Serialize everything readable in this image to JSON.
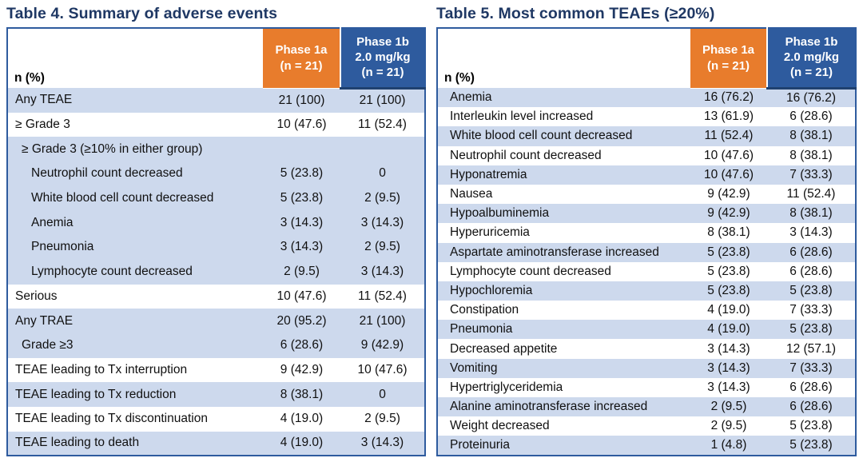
{
  "colors": {
    "title_navy": "#1F3864",
    "header_orange": "#E87C2C",
    "header_blue": "#2E5B9E",
    "row_stripe_blue": "#CDD9ED",
    "table_border_blue": "#2E5B9E"
  },
  "tables": [
    {
      "title": "Table 4. Summary of adverse events",
      "n_label": "n (%)",
      "columns": [
        {
          "label": "Phase 1a\n(n = 21)"
        },
        {
          "label": "Phase 1b\n2.0 mg/kg\n(n = 21)"
        }
      ],
      "rows": [
        {
          "label": "Any TEAE",
          "a": "21 (100)",
          "b": "21 (100)",
          "shade": "blue",
          "indent": 0
        },
        {
          "label": "≥ Grade 3",
          "a": "10 (47.6)",
          "b": "11 (52.4)",
          "shade": "white",
          "indent": 0
        },
        {
          "label": "≥ Grade 3 (≥10% in either group)",
          "a": "",
          "b": "",
          "shade": "blue",
          "indent": 1
        },
        {
          "label": "Neutrophil count decreased",
          "a": "5 (23.8)",
          "b": "0",
          "shade": "blue",
          "indent": 2
        },
        {
          "label": "White blood cell count decreased",
          "a": "5 (23.8)",
          "b": "2 (9.5)",
          "shade": "blue",
          "indent": 2
        },
        {
          "label": "Anemia",
          "a": "3 (14.3)",
          "b": "3 (14.3)",
          "shade": "blue",
          "indent": 2
        },
        {
          "label": "Pneumonia",
          "a": "3 (14.3)",
          "b": "2 (9.5)",
          "shade": "blue",
          "indent": 2
        },
        {
          "label": "Lymphocyte count decreased",
          "a": "2 (9.5)",
          "b": "3 (14.3)",
          "shade": "blue",
          "indent": 2
        },
        {
          "label": "Serious",
          "a": "10 (47.6)",
          "b": "11 (52.4)",
          "shade": "white",
          "indent": 0
        },
        {
          "label": "Any TRAE",
          "a": "20 (95.2)",
          "b": "21 (100)",
          "shade": "blue",
          "indent": 0
        },
        {
          "label": "Grade ≥3",
          "a": "6 (28.6)",
          "b": "9 (42.9)",
          "shade": "blue",
          "indent": 1
        },
        {
          "label": "TEAE leading to Tx interruption",
          "a": "9 (42.9)",
          "b": "10 (47.6)",
          "shade": "white",
          "indent": 0
        },
        {
          "label": "TEAE leading to Tx reduction",
          "a": "8 (38.1)",
          "b": "0",
          "shade": "blue",
          "indent": 0
        },
        {
          "label": "TEAE leading to Tx discontinuation",
          "a": "4 (19.0)",
          "b": "2 (9.5)",
          "shade": "white",
          "indent": 0
        },
        {
          "label": "TEAE leading to death",
          "a": "4 (19.0)",
          "b": "3 (14.3)",
          "shade": "blue",
          "indent": 0
        }
      ]
    },
    {
      "title": "Table 5. Most common TEAEs (≥20%)",
      "n_label": "n (%)",
      "columns": [
        {
          "label": "Phase 1a\n(n = 21)"
        },
        {
          "label": "Phase 1b\n2.0 mg/kg\n(n = 21)"
        }
      ],
      "rows": [
        {
          "label": "Anemia",
          "a": "16 (76.2)",
          "b": "16 (76.2)",
          "shade": "blue",
          "indent": 0
        },
        {
          "label": "Interleukin level increased",
          "a": "13 (61.9)",
          "b": "6 (28.6)",
          "shade": "white",
          "indent": 0
        },
        {
          "label": "White blood cell count decreased",
          "a": "11 (52.4)",
          "b": "8 (38.1)",
          "shade": "blue",
          "indent": 0
        },
        {
          "label": "Neutrophil count decreased",
          "a": "10 (47.6)",
          "b": "8 (38.1)",
          "shade": "white",
          "indent": 0
        },
        {
          "label": "Hyponatremia",
          "a": "10 (47.6)",
          "b": "7 (33.3)",
          "shade": "blue",
          "indent": 0
        },
        {
          "label": "Nausea",
          "a": "9 (42.9)",
          "b": "11 (52.4)",
          "shade": "white",
          "indent": 0
        },
        {
          "label": "Hypoalbuminemia",
          "a": "9 (42.9)",
          "b": "8 (38.1)",
          "shade": "blue",
          "indent": 0
        },
        {
          "label": "Hyperuricemia",
          "a": "8 (38.1)",
          "b": "3 (14.3)",
          "shade": "white",
          "indent": 0
        },
        {
          "label": "Aspartate aminotransferase increased",
          "a": "5 (23.8)",
          "b": "6 (28.6)",
          "shade": "blue",
          "indent": 0
        },
        {
          "label": "Lymphocyte count decreased",
          "a": "5 (23.8)",
          "b": "6 (28.6)",
          "shade": "white",
          "indent": 0
        },
        {
          "label": "Hypochloremia",
          "a": "5 (23.8)",
          "b": "5 (23.8)",
          "shade": "blue",
          "indent": 0
        },
        {
          "label": "Constipation",
          "a": "4 (19.0)",
          "b": "7 (33.3)",
          "shade": "white",
          "indent": 0
        },
        {
          "label": "Pneumonia",
          "a": "4 (19.0)",
          "b": "5 (23.8)",
          "shade": "blue",
          "indent": 0
        },
        {
          "label": "Decreased appetite",
          "a": "3 (14.3)",
          "b": "12 (57.1)",
          "shade": "white",
          "indent": 0
        },
        {
          "label": "Vomiting",
          "a": "3 (14.3)",
          "b": "7 (33.3)",
          "shade": "blue",
          "indent": 0
        },
        {
          "label": "Hypertriglyceridemia",
          "a": "3 (14.3)",
          "b": "6 (28.6)",
          "shade": "white",
          "indent": 0
        },
        {
          "label": "Alanine aminotransferase increased",
          "a": "2 (9.5)",
          "b": "6 (28.6)",
          "shade": "blue",
          "indent": 0
        },
        {
          "label": "Weight decreased",
          "a": "2 (9.5)",
          "b": "5 (23.8)",
          "shade": "white",
          "indent": 0
        },
        {
          "label": "Proteinuria",
          "a": "1 (4.8)",
          "b": "5 (23.8)",
          "shade": "blue",
          "indent": 0
        }
      ]
    }
  ]
}
